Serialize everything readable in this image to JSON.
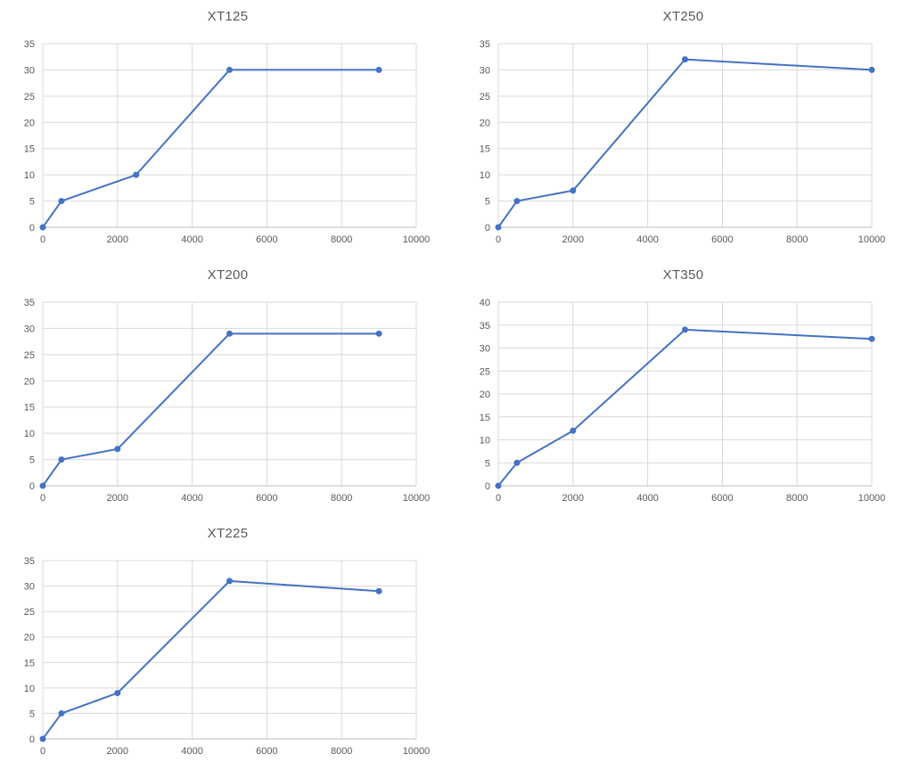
{
  "chart_style": {
    "line_color": "#4472C4",
    "marker_color": "#4472C4",
    "grid_color": "#D9D9D9",
    "axis_color": "#BFBFBF",
    "text_color": "#595959",
    "background": "#ffffff",
    "marker_radius": 3.5,
    "line_width": 2
  },
  "chart_data": [
    {
      "type": "line",
      "title": "XT125",
      "x": [
        0,
        500,
        2500,
        5000,
        9000
      ],
      "y": [
        0,
        5,
        10,
        30,
        30
      ],
      "xlim": [
        0,
        10000
      ],
      "ylim": [
        0,
        35
      ],
      "xticks": [
        0,
        2000,
        4000,
        6000,
        8000,
        10000
      ],
      "yticks": [
        0,
        5,
        10,
        15,
        20,
        25,
        30,
        35
      ],
      "xlabel": "",
      "ylabel": "",
      "grid": true,
      "legend": "none",
      "markers": true
    },
    {
      "type": "line",
      "title": "XT250",
      "x": [
        0,
        500,
        2000,
        5000,
        10000
      ],
      "y": [
        0,
        5,
        7,
        32,
        30
      ],
      "xlim": [
        0,
        10000
      ],
      "ylim": [
        0,
        35
      ],
      "xticks": [
        0,
        2000,
        4000,
        6000,
        8000,
        10000
      ],
      "yticks": [
        0,
        5,
        10,
        15,
        20,
        25,
        30,
        35
      ],
      "xlabel": "",
      "ylabel": "",
      "grid": true,
      "legend": "none",
      "markers": true
    },
    {
      "type": "line",
      "title": "XT200",
      "x": [
        0,
        500,
        2000,
        5000,
        9000
      ],
      "y": [
        0,
        5,
        7,
        29,
        29
      ],
      "xlim": [
        0,
        10000
      ],
      "ylim": [
        0,
        35
      ],
      "xticks": [
        0,
        2000,
        4000,
        6000,
        8000,
        10000
      ],
      "yticks": [
        0,
        5,
        10,
        15,
        20,
        25,
        30,
        35
      ],
      "xlabel": "",
      "ylabel": "",
      "grid": true,
      "legend": "none",
      "markers": true
    },
    {
      "type": "line",
      "title": "XT350",
      "x": [
        0,
        500,
        2000,
        5000,
        10000
      ],
      "y": [
        0,
        5,
        12,
        34,
        32
      ],
      "xlim": [
        0,
        10000
      ],
      "ylim": [
        0,
        40
      ],
      "xticks": [
        0,
        2000,
        4000,
        6000,
        8000,
        10000
      ],
      "yticks": [
        0,
        5,
        10,
        15,
        20,
        25,
        30,
        35,
        40
      ],
      "xlabel": "",
      "ylabel": "",
      "grid": true,
      "legend": "none",
      "markers": true
    },
    {
      "type": "line",
      "title": "XT225",
      "x": [
        0,
        500,
        2000,
        5000,
        9000
      ],
      "y": [
        0,
        5,
        9,
        31,
        29
      ],
      "xlim": [
        0,
        10000
      ],
      "ylim": [
        0,
        35
      ],
      "xticks": [
        0,
        2000,
        4000,
        6000,
        8000,
        10000
      ],
      "yticks": [
        0,
        5,
        10,
        15,
        20,
        25,
        30,
        35
      ],
      "xlabel": "",
      "ylabel": "",
      "grid": true,
      "legend": "none",
      "markers": true
    }
  ]
}
